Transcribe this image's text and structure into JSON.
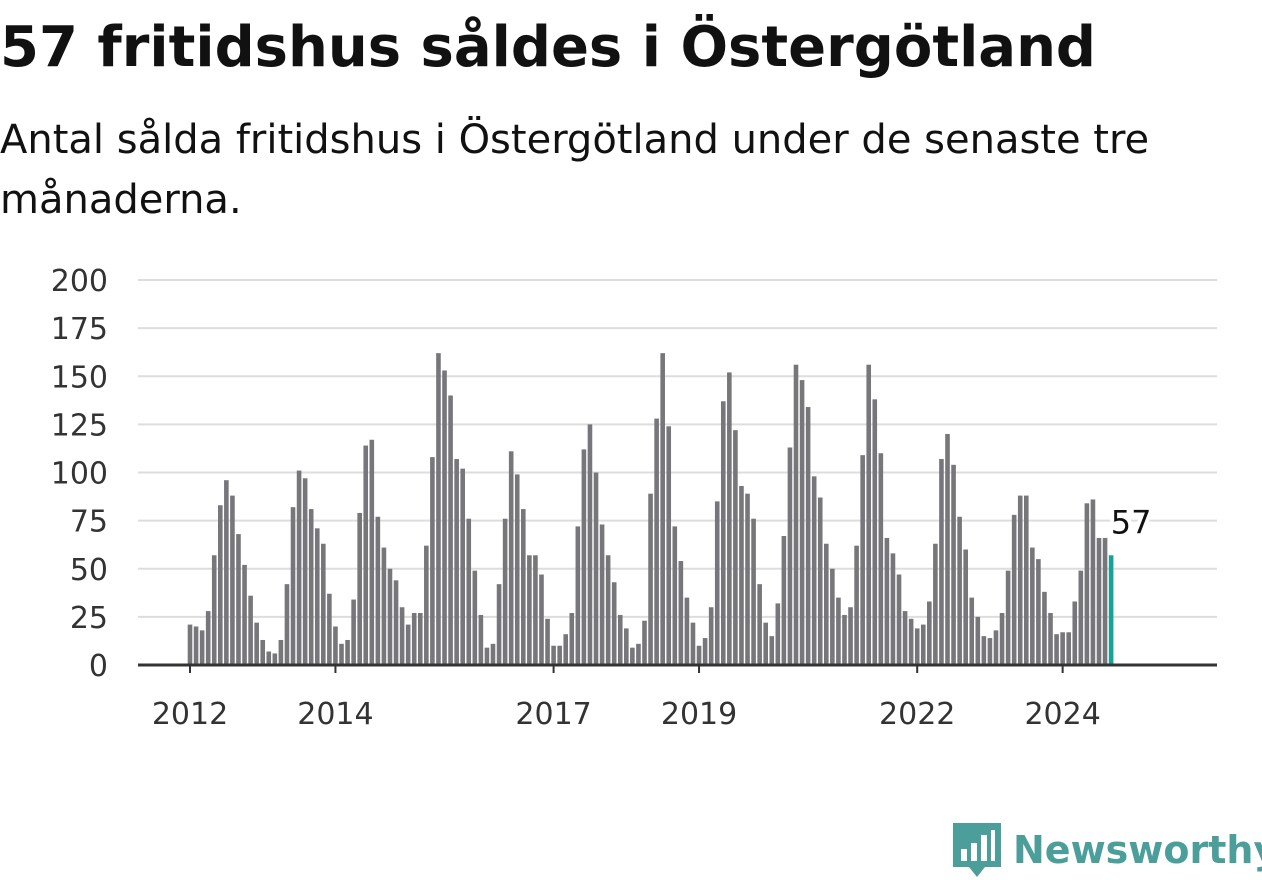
{
  "title": "57 fritidshus såldes i Östergötland",
  "subtitle": "Antal sålda fritidshus i Östergötland under de senaste tre månaderna.",
  "brand": {
    "name": "Newsworthy",
    "color": "#4b9e9a",
    "icon": "newsworthy-logo-icon"
  },
  "chart_data": {
    "type": "bar",
    "title": "57 fritidshus såldes i Östergötland",
    "subtitle": "Antal sålda fritidshus i Östergötland under de senaste tre månaderna.",
    "xlabel": "",
    "ylabel": "",
    "ylim": [
      0,
      200
    ],
    "yticks": [
      0,
      25,
      50,
      75,
      100,
      125,
      150,
      175,
      200
    ],
    "xticks": [
      {
        "label": "2012",
        "at": "2012-01"
      },
      {
        "label": "2014",
        "at": "2014-01"
      },
      {
        "label": "2017",
        "at": "2017-01"
      },
      {
        "label": "2019",
        "at": "2019-01"
      },
      {
        "label": "2022",
        "at": "2022-01"
      },
      {
        "label": "2024",
        "at": "2024-01"
      }
    ],
    "grid": true,
    "bar_color": "#77767b",
    "highlight_color": "#17a297",
    "highlight_label": "57",
    "categories": [
      "2012-01",
      "2012-02",
      "2012-03",
      "2012-04",
      "2012-05",
      "2012-06",
      "2012-07",
      "2012-08",
      "2012-09",
      "2012-10",
      "2012-11",
      "2012-12",
      "2013-01",
      "2013-02",
      "2013-03",
      "2013-04",
      "2013-05",
      "2013-06",
      "2013-07",
      "2013-08",
      "2013-09",
      "2013-10",
      "2013-11",
      "2013-12",
      "2014-01",
      "2014-02",
      "2014-03",
      "2014-04",
      "2014-05",
      "2014-06",
      "2014-07",
      "2014-08",
      "2014-09",
      "2014-10",
      "2014-11",
      "2014-12",
      "2015-01",
      "2015-02",
      "2015-03",
      "2015-04",
      "2015-05",
      "2015-06",
      "2015-07",
      "2015-08",
      "2015-09",
      "2015-10",
      "2015-11",
      "2015-12",
      "2016-01",
      "2016-02",
      "2016-03",
      "2016-04",
      "2016-05",
      "2016-06",
      "2016-07",
      "2016-08",
      "2016-09",
      "2016-10",
      "2016-11",
      "2016-12",
      "2017-01",
      "2017-02",
      "2017-03",
      "2017-04",
      "2017-05",
      "2017-06",
      "2017-07",
      "2017-08",
      "2017-09",
      "2017-10",
      "2017-11",
      "2017-12",
      "2018-01",
      "2018-02",
      "2018-03",
      "2018-04",
      "2018-05",
      "2018-06",
      "2018-07",
      "2018-08",
      "2018-09",
      "2018-10",
      "2018-11",
      "2018-12",
      "2019-01",
      "2019-02",
      "2019-03",
      "2019-04",
      "2019-05",
      "2019-06",
      "2019-07",
      "2019-08",
      "2019-09",
      "2019-10",
      "2019-11",
      "2019-12",
      "2020-01",
      "2020-02",
      "2020-03",
      "2020-04",
      "2020-05",
      "2020-06",
      "2020-07",
      "2020-08",
      "2020-09",
      "2020-10",
      "2020-11",
      "2020-12",
      "2021-01",
      "2021-02",
      "2021-03",
      "2021-04",
      "2021-05",
      "2021-06",
      "2021-07",
      "2021-08",
      "2021-09",
      "2021-10",
      "2021-11",
      "2021-12",
      "2022-01",
      "2022-02",
      "2022-03",
      "2022-04",
      "2022-05",
      "2022-06",
      "2022-07",
      "2022-08",
      "2022-09",
      "2022-10",
      "2022-11",
      "2022-12",
      "2023-01",
      "2023-02",
      "2023-03",
      "2023-04",
      "2023-05",
      "2023-06",
      "2023-07",
      "2023-08",
      "2023-09",
      "2023-10",
      "2023-11",
      "2023-12",
      "2024-01",
      "2024-02",
      "2024-03",
      "2024-04",
      "2024-05",
      "2024-06",
      "2024-07",
      "2024-08",
      "2024-09"
    ],
    "values": [
      21,
      20,
      18,
      28,
      57,
      83,
      96,
      88,
      68,
      52,
      36,
      22,
      13,
      7,
      6,
      13,
      42,
      82,
      101,
      97,
      81,
      71,
      63,
      37,
      20,
      11,
      13,
      34,
      79,
      114,
      117,
      77,
      61,
      50,
      44,
      30,
      21,
      27,
      27,
      62,
      108,
      162,
      153,
      140,
      107,
      102,
      76,
      49,
      26,
      9,
      11,
      42,
      76,
      111,
      99,
      81,
      57,
      57,
      47,
      24,
      10,
      10,
      16,
      27,
      72,
      112,
      125,
      100,
      73,
      57,
      43,
      26,
      19,
      9,
      11,
      23,
      89,
      128,
      162,
      124,
      72,
      54,
      35,
      22,
      10,
      14,
      30,
      85,
      137,
      152,
      122,
      93,
      89,
      76,
      42,
      22,
      15,
      32,
      67,
      113,
      156,
      148,
      134,
      98,
      87,
      63,
      50,
      35,
      26,
      30,
      62,
      109,
      156,
      138,
      110,
      66,
      58,
      47,
      28,
      24,
      19,
      21,
      33,
      63,
      107,
      120,
      104,
      77,
      60,
      35,
      25,
      15,
      14,
      18,
      27,
      49,
      78,
      88,
      88,
      61,
      55,
      38,
      27,
      16,
      17,
      17,
      33,
      49,
      84,
      86,
      66,
      66,
      57
    ]
  }
}
